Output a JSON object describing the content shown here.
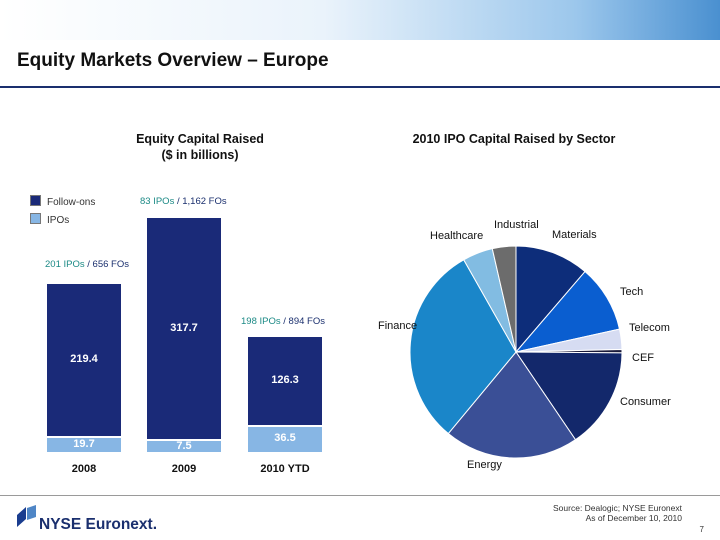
{
  "slide": {
    "title": "Equity Markets Overview – Europe",
    "source_line1": "Source: Dealogic; NYSE Euronext",
    "source_line2": "As of December 10, 2010",
    "page_number": "7",
    "logo_text": "NYSE Euronext."
  },
  "colors": {
    "follow_ons": "#1a2a78",
    "ipos": "#87b6e4",
    "follow_ons_label": "#ffffff",
    "ipos_label": "#ffffff",
    "ipo_annotation": "#1c8a86"
  },
  "chart_data": [
    {
      "type": "bar",
      "stacked": true,
      "title_line1": "Equity Capital Raised",
      "title_line2": "($ in billions)",
      "categories": [
        "2008",
        "2009",
        "2010 YTD"
      ],
      "series": [
        {
          "name": "IPOs",
          "values": [
            19.7,
            7.5,
            36.5
          ],
          "labels": [
            "19.7",
            "7.5",
            "36.5"
          ]
        },
        {
          "name": "Follow-ons",
          "values": [
            219.4,
            317.7,
            126.3
          ],
          "labels": [
            "219.4",
            "317.7",
            "126.3"
          ]
        }
      ],
      "annotations": [
        {
          "ipos": "201 IPOs",
          "sep": " / ",
          "fos": "656 FOs"
        },
        {
          "ipos": "83 IPOs",
          "sep": " / ",
          "fos": "1,162 FOs"
        },
        {
          "ipos": "198 IPOs",
          "sep": " / ",
          "fos": "894 FOs"
        }
      ],
      "legend": [
        "Follow-ons",
        "IPOs"
      ],
      "legend_position": "top-left",
      "ylim": [
        0,
        340
      ],
      "grid": false
    },
    {
      "type": "pie",
      "title": "2010 IPO Capital Raised by Sector",
      "slices": [
        {
          "label": "Materials",
          "value": 11,
          "color": "#0d2d7a"
        },
        {
          "label": "Tech",
          "value": 10,
          "color": "#0a5ed0"
        },
        {
          "label": "Telecom",
          "value": 3,
          "color": "#d6dcf2"
        },
        {
          "label": "CEF",
          "value": 0.5,
          "color": "#1a1a3a"
        },
        {
          "label": "Consumer",
          "value": 15,
          "color": "#13286b"
        },
        {
          "label": "Energy",
          "value": 20,
          "color": "#3a4f96"
        },
        {
          "label": "Finance",
          "value": 30,
          "color": "#1a86c9"
        },
        {
          "label": "Healthcare",
          "value": 4.5,
          "color": "#82bce2"
        },
        {
          "label": "Industrial",
          "value": 3.5,
          "color": "#6c6c6c"
        }
      ]
    }
  ]
}
